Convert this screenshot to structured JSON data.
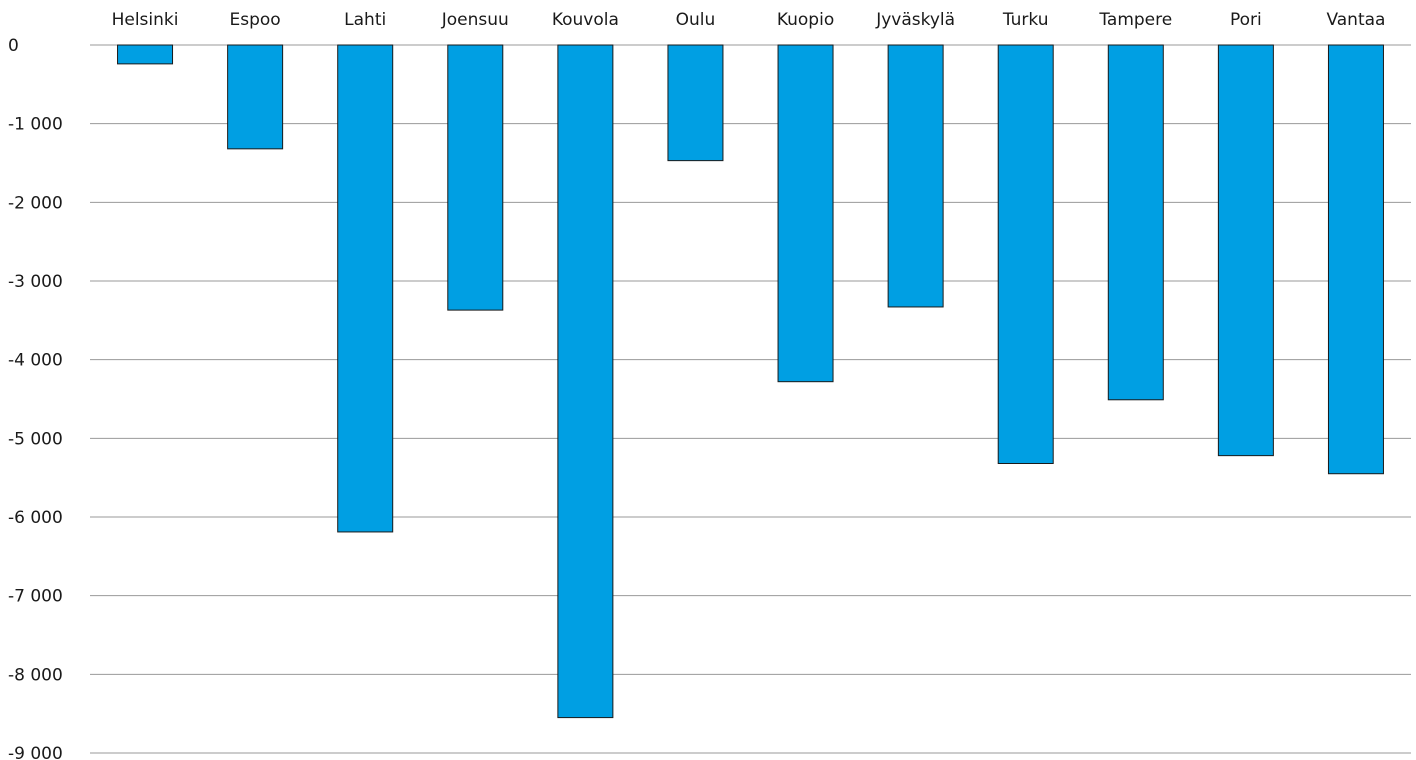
{
  "chart_data": {
    "type": "bar",
    "title": "",
    "xlabel": "",
    "ylabel": "",
    "categories": [
      "Helsinki",
      "Espoo",
      "Lahti",
      "Joensuu",
      "Kouvola",
      "Oulu",
      "Kuopio",
      "Jyväskylä",
      "Turku",
      "Tampere",
      "Pori",
      "Vantaa"
    ],
    "values": [
      -240,
      -1320,
      -6190,
      -3370,
      -8550,
      -1470,
      -4280,
      -3330,
      -5320,
      -4510,
      -5220,
      -5450
    ],
    "ylim": [
      -9000,
      0
    ],
    "yticks": [
      0,
      -1000,
      -2000,
      -3000,
      -4000,
      -5000,
      -6000,
      -7000,
      -8000,
      -9000
    ],
    "ytick_labels": [
      "0",
      "-1 000",
      "-2 000",
      "-3 000",
      "-4 000",
      "-5 000",
      "-6 000",
      "-7 000",
      "-8 000",
      "-9 000"
    ],
    "category_axis_position": "top",
    "grid": true,
    "legend": "none",
    "bar_color": "#009fe3",
    "bar_outline_color": "#1a1a1a",
    "grid_color": "#9a9a9a"
  }
}
